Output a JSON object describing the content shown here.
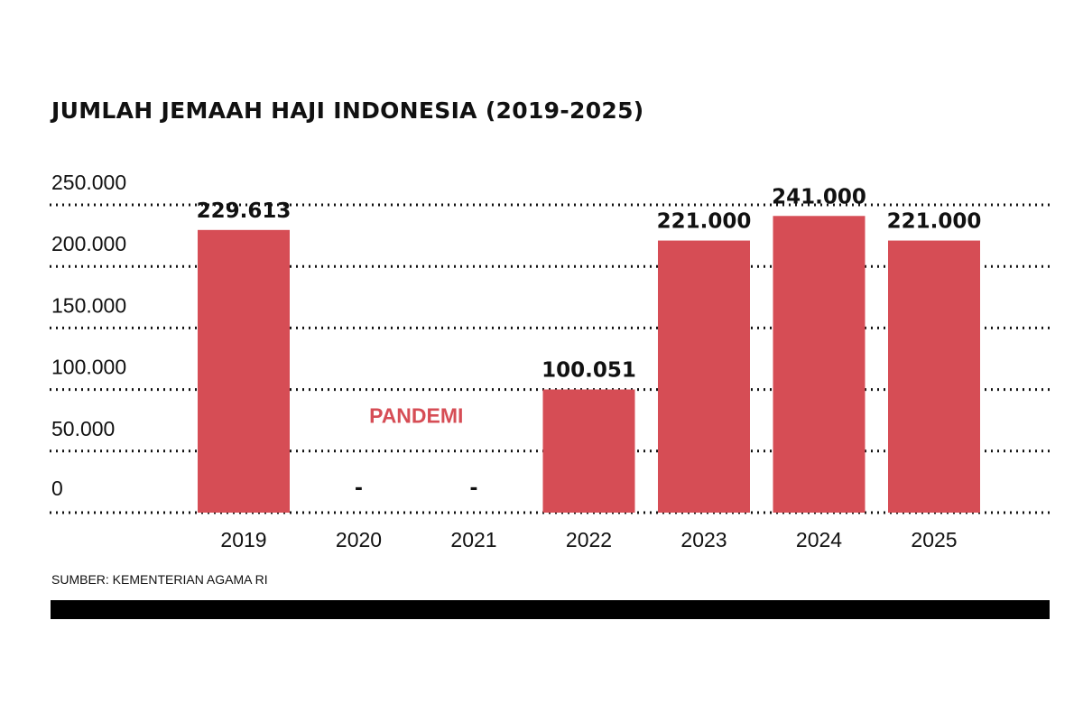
{
  "chart_data": {
    "type": "bar",
    "title": "JUMLAH JEMAAH HAJI INDONESIA (2019-2025)",
    "categories": [
      "2019",
      "2020",
      "2021",
      "2022",
      "2023",
      "2024",
      "2025"
    ],
    "values": [
      229613,
      0,
      0,
      100051,
      221000,
      241000,
      221000
    ],
    "value_labels": [
      "229.613",
      "-",
      "-",
      "100.051",
      "221.000",
      "241.000",
      "221.000"
    ],
    "y_ticks": [
      0,
      50000,
      100000,
      150000,
      200000,
      250000
    ],
    "y_tick_labels": [
      "0",
      "50.000",
      "100.000",
      "150.000",
      "200.000",
      "250.000"
    ],
    "ylim": [
      0,
      250000
    ],
    "grid": "dotted horizontal",
    "annotation": {
      "text": "PANDEMI",
      "x_categories": [
        "2020",
        "2021"
      ],
      "y": 73000
    },
    "colors": {
      "bar": "#d64d55",
      "annotation": "#d64d55",
      "text": "#111111"
    }
  },
  "source": "SUMBER: KEMENTERIAN AGAMA RI"
}
